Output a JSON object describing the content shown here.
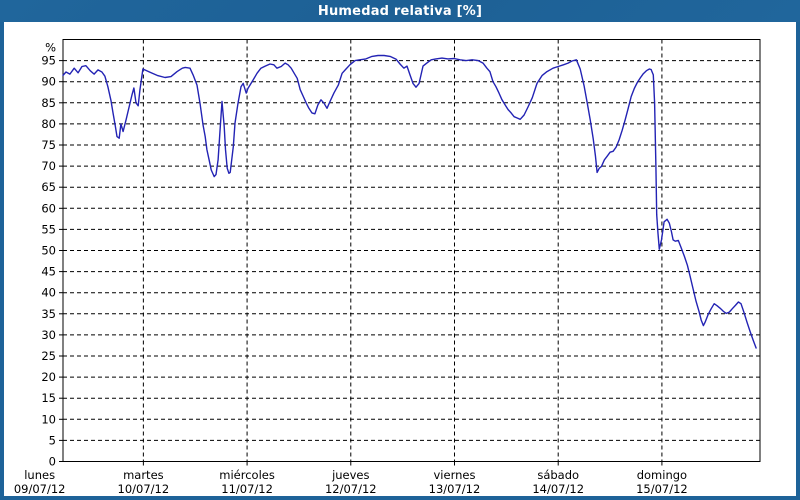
{
  "window": {
    "title": "Humedad relativa [%]"
  },
  "colors": {
    "frame": "#1e6399",
    "title_text": "#ffffff",
    "plot_background": "#ffffff",
    "plot_border": "#000000",
    "grid": "#000000",
    "line": "#2323b4",
    "axis_text": "#000000"
  },
  "chart_data": {
    "type": "line",
    "title": "Humedad relativa [%]",
    "ylabel": "%",
    "ylim": [
      0,
      100
    ],
    "y_ticks": [
      0,
      5,
      10,
      15,
      20,
      25,
      30,
      35,
      40,
      45,
      50,
      55,
      60,
      65,
      70,
      75,
      80,
      85,
      90,
      95
    ],
    "grid": "dashed",
    "legend": "none",
    "x_axis": {
      "unit": "hours since lunes 09/07/12 00:00",
      "xlim_hours": [
        5.4,
        166.7
      ],
      "day_ticks": [
        {
          "label": "lunes",
          "date": "09/07/12",
          "t": 0
        },
        {
          "label": "martes",
          "date": "10/07/12",
          "t": 24
        },
        {
          "label": "miércoles",
          "date": "11/07/12",
          "t": 48
        },
        {
          "label": "jueves",
          "date": "12/07/12",
          "t": 72
        },
        {
          "label": "viernes",
          "date": "13/07/12",
          "t": 96
        },
        {
          "label": "sábado",
          "date": "14/07/12",
          "t": 120
        },
        {
          "label": "domingo",
          "date": "15/07/12",
          "t": 144
        }
      ]
    },
    "series": [
      {
        "name": "Humedad relativa",
        "color": "#2323b4",
        "points": [
          [
            5.4,
            91.5
          ],
          [
            6.1,
            92.3
          ],
          [
            7.0,
            91.8
          ],
          [
            8.0,
            93.2
          ],
          [
            8.9,
            92.1
          ],
          [
            9.8,
            93.6
          ],
          [
            10.7,
            93.8
          ],
          [
            11.7,
            92.6
          ],
          [
            12.6,
            91.8
          ],
          [
            13.5,
            92.8
          ],
          [
            14.4,
            92.3
          ],
          [
            15.1,
            91.3
          ],
          [
            15.8,
            88.8
          ],
          [
            16.5,
            85.5
          ],
          [
            17.0,
            82.5
          ],
          [
            17.5,
            79.5
          ],
          [
            17.9,
            77.0
          ],
          [
            18.4,
            76.6
          ],
          [
            18.8,
            80.0
          ],
          [
            19.3,
            78.2
          ],
          [
            20.0,
            81.0
          ],
          [
            20.7,
            84.0
          ],
          [
            21.4,
            87.0
          ],
          [
            21.8,
            88.5
          ],
          [
            22.3,
            85.0
          ],
          [
            22.8,
            84.3
          ],
          [
            23.2,
            88.0
          ],
          [
            23.9,
            93.0
          ],
          [
            25.6,
            92.2
          ],
          [
            27.2,
            91.5
          ],
          [
            29.0,
            91.0
          ],
          [
            30.4,
            91.2
          ],
          [
            31.8,
            92.4
          ],
          [
            33.0,
            93.2
          ],
          [
            33.7,
            93.4
          ],
          [
            34.8,
            93.2
          ],
          [
            35.5,
            91.6
          ],
          [
            36.4,
            89.2
          ],
          [
            37.1,
            84.9
          ],
          [
            37.8,
            79.8
          ],
          [
            38.3,
            77.0
          ],
          [
            38.7,
            73.9
          ],
          [
            39.2,
            71.5
          ],
          [
            39.7,
            69.1
          ],
          [
            40.4,
            67.5
          ],
          [
            40.8,
            68.0
          ],
          [
            41.3,
            71.5
          ],
          [
            41.8,
            79.4
          ],
          [
            42.2,
            85.3
          ],
          [
            42.7,
            79.4
          ],
          [
            43.0,
            73.9
          ],
          [
            43.4,
            69.5
          ],
          [
            43.8,
            68.3
          ],
          [
            44.1,
            68.5
          ],
          [
            44.8,
            74.6
          ],
          [
            45.2,
            80.2
          ],
          [
            45.9,
            84.9
          ],
          [
            46.6,
            88.8
          ],
          [
            47.1,
            89.6
          ],
          [
            47.8,
            87.3
          ],
          [
            48.2,
            88.4
          ],
          [
            49.4,
            90.4
          ],
          [
            50.3,
            92.0
          ],
          [
            51.2,
            93.2
          ],
          [
            52.2,
            93.7
          ],
          [
            53.3,
            94.2
          ],
          [
            54.2,
            94.0
          ],
          [
            54.9,
            93.2
          ],
          [
            55.9,
            93.6
          ],
          [
            56.8,
            94.4
          ],
          [
            57.5,
            94.0
          ],
          [
            58.2,
            93.2
          ],
          [
            58.9,
            92.0
          ],
          [
            59.6,
            90.8
          ],
          [
            60.3,
            88.1
          ],
          [
            61.0,
            86.5
          ],
          [
            61.7,
            84.9
          ],
          [
            62.3,
            83.7
          ],
          [
            63.0,
            82.6
          ],
          [
            63.7,
            82.4
          ],
          [
            64.4,
            84.5
          ],
          [
            65.1,
            85.7
          ],
          [
            65.8,
            84.9
          ],
          [
            66.5,
            83.7
          ],
          [
            67.2,
            85.3
          ],
          [
            68.1,
            87.3
          ],
          [
            69.1,
            89.2
          ],
          [
            70.0,
            92.0
          ],
          [
            70.9,
            93.0
          ],
          [
            71.8,
            94.0
          ],
          [
            73.0,
            95.0
          ],
          [
            74.1,
            95.2
          ],
          [
            75.5,
            95.4
          ],
          [
            76.9,
            96.0
          ],
          [
            78.3,
            96.2
          ],
          [
            79.7,
            96.2
          ],
          [
            81.1,
            96.0
          ],
          [
            82.5,
            95.3
          ],
          [
            83.4,
            94.2
          ],
          [
            84.3,
            93.2
          ],
          [
            85.0,
            93.7
          ],
          [
            85.7,
            91.6
          ],
          [
            86.4,
            89.6
          ],
          [
            87.1,
            88.7
          ],
          [
            87.8,
            89.6
          ],
          [
            88.7,
            93.7
          ],
          [
            89.7,
            94.5
          ],
          [
            90.6,
            95.2
          ],
          [
            91.7,
            95.4
          ],
          [
            93.1,
            95.6
          ],
          [
            94.5,
            95.4
          ],
          [
            95.9,
            95.5
          ],
          [
            97.3,
            95.2
          ],
          [
            98.7,
            95.0
          ],
          [
            100.1,
            95.2
          ],
          [
            101.5,
            95.0
          ],
          [
            102.6,
            94.4
          ],
          [
            103.5,
            93.2
          ],
          [
            104.2,
            92.4
          ],
          [
            104.9,
            90.0
          ],
          [
            105.6,
            88.8
          ],
          [
            106.3,
            87.3
          ],
          [
            107.0,
            85.7
          ],
          [
            107.7,
            84.5
          ],
          [
            108.4,
            83.4
          ],
          [
            109.1,
            82.6
          ],
          [
            109.8,
            81.7
          ],
          [
            110.5,
            81.4
          ],
          [
            111.2,
            81.1
          ],
          [
            112.1,
            82.1
          ],
          [
            113.0,
            84.0
          ],
          [
            114.0,
            86.2
          ],
          [
            115.1,
            89.6
          ],
          [
            116.3,
            91.5
          ],
          [
            117.4,
            92.4
          ],
          [
            118.8,
            93.2
          ],
          [
            120.0,
            93.6
          ],
          [
            121.2,
            94.0
          ],
          [
            122.3,
            94.4
          ],
          [
            123.2,
            94.9
          ],
          [
            124.2,
            95.2
          ],
          [
            125.1,
            93.0
          ],
          [
            126.0,
            89.0
          ],
          [
            126.7,
            85.0
          ],
          [
            127.4,
            81.0
          ],
          [
            128.1,
            76.5
          ],
          [
            128.6,
            72.5
          ],
          [
            129.0,
            68.5
          ],
          [
            129.5,
            69.5
          ],
          [
            130.0,
            69.9
          ],
          [
            130.7,
            71.5
          ],
          [
            131.3,
            72.3
          ],
          [
            132.0,
            73.3
          ],
          [
            132.7,
            73.5
          ],
          [
            133.4,
            74.5
          ],
          [
            134.1,
            76.2
          ],
          [
            134.8,
            78.5
          ],
          [
            135.5,
            81.0
          ],
          [
            136.2,
            83.7
          ],
          [
            136.9,
            86.5
          ],
          [
            137.6,
            88.4
          ],
          [
            138.3,
            89.8
          ],
          [
            139.0,
            90.9
          ],
          [
            139.7,
            91.9
          ],
          [
            140.4,
            92.6
          ],
          [
            141.1,
            93.0
          ],
          [
            141.5,
            92.9
          ],
          [
            142.0,
            91.6
          ],
          [
            142.3,
            85.0
          ],
          [
            142.6,
            70.0
          ],
          [
            142.8,
            58.5
          ],
          [
            143.1,
            54.0
          ],
          [
            143.4,
            50.3
          ],
          [
            143.9,
            52.5
          ],
          [
            144.5,
            56.8
          ],
          [
            145.2,
            57.4
          ],
          [
            145.7,
            56.5
          ],
          [
            146.2,
            54.5
          ],
          [
            146.6,
            52.5
          ],
          [
            147.1,
            52.2
          ],
          [
            147.8,
            52.4
          ],
          [
            148.5,
            50.5
          ],
          [
            149.2,
            48.6
          ],
          [
            149.9,
            46.5
          ],
          [
            150.5,
            44.0
          ],
          [
            151.2,
            41.0
          ],
          [
            151.9,
            38.0
          ],
          [
            152.6,
            35.5
          ],
          [
            153.1,
            33.5
          ],
          [
            153.6,
            32.2
          ],
          [
            154.0,
            33.0
          ],
          [
            154.7,
            34.8
          ],
          [
            155.4,
            36.2
          ],
          [
            156.1,
            37.4
          ],
          [
            156.8,
            36.9
          ],
          [
            157.5,
            36.3
          ],
          [
            158.2,
            35.6
          ],
          [
            158.9,
            35.1
          ],
          [
            159.6,
            35.4
          ],
          [
            160.3,
            36.2
          ],
          [
            161.0,
            37.0
          ],
          [
            161.7,
            37.8
          ],
          [
            162.3,
            37.4
          ],
          [
            163.0,
            35.3
          ],
          [
            163.7,
            33.0
          ],
          [
            164.4,
            30.8
          ],
          [
            165.1,
            28.8
          ],
          [
            165.8,
            26.9
          ]
        ]
      }
    ]
  }
}
